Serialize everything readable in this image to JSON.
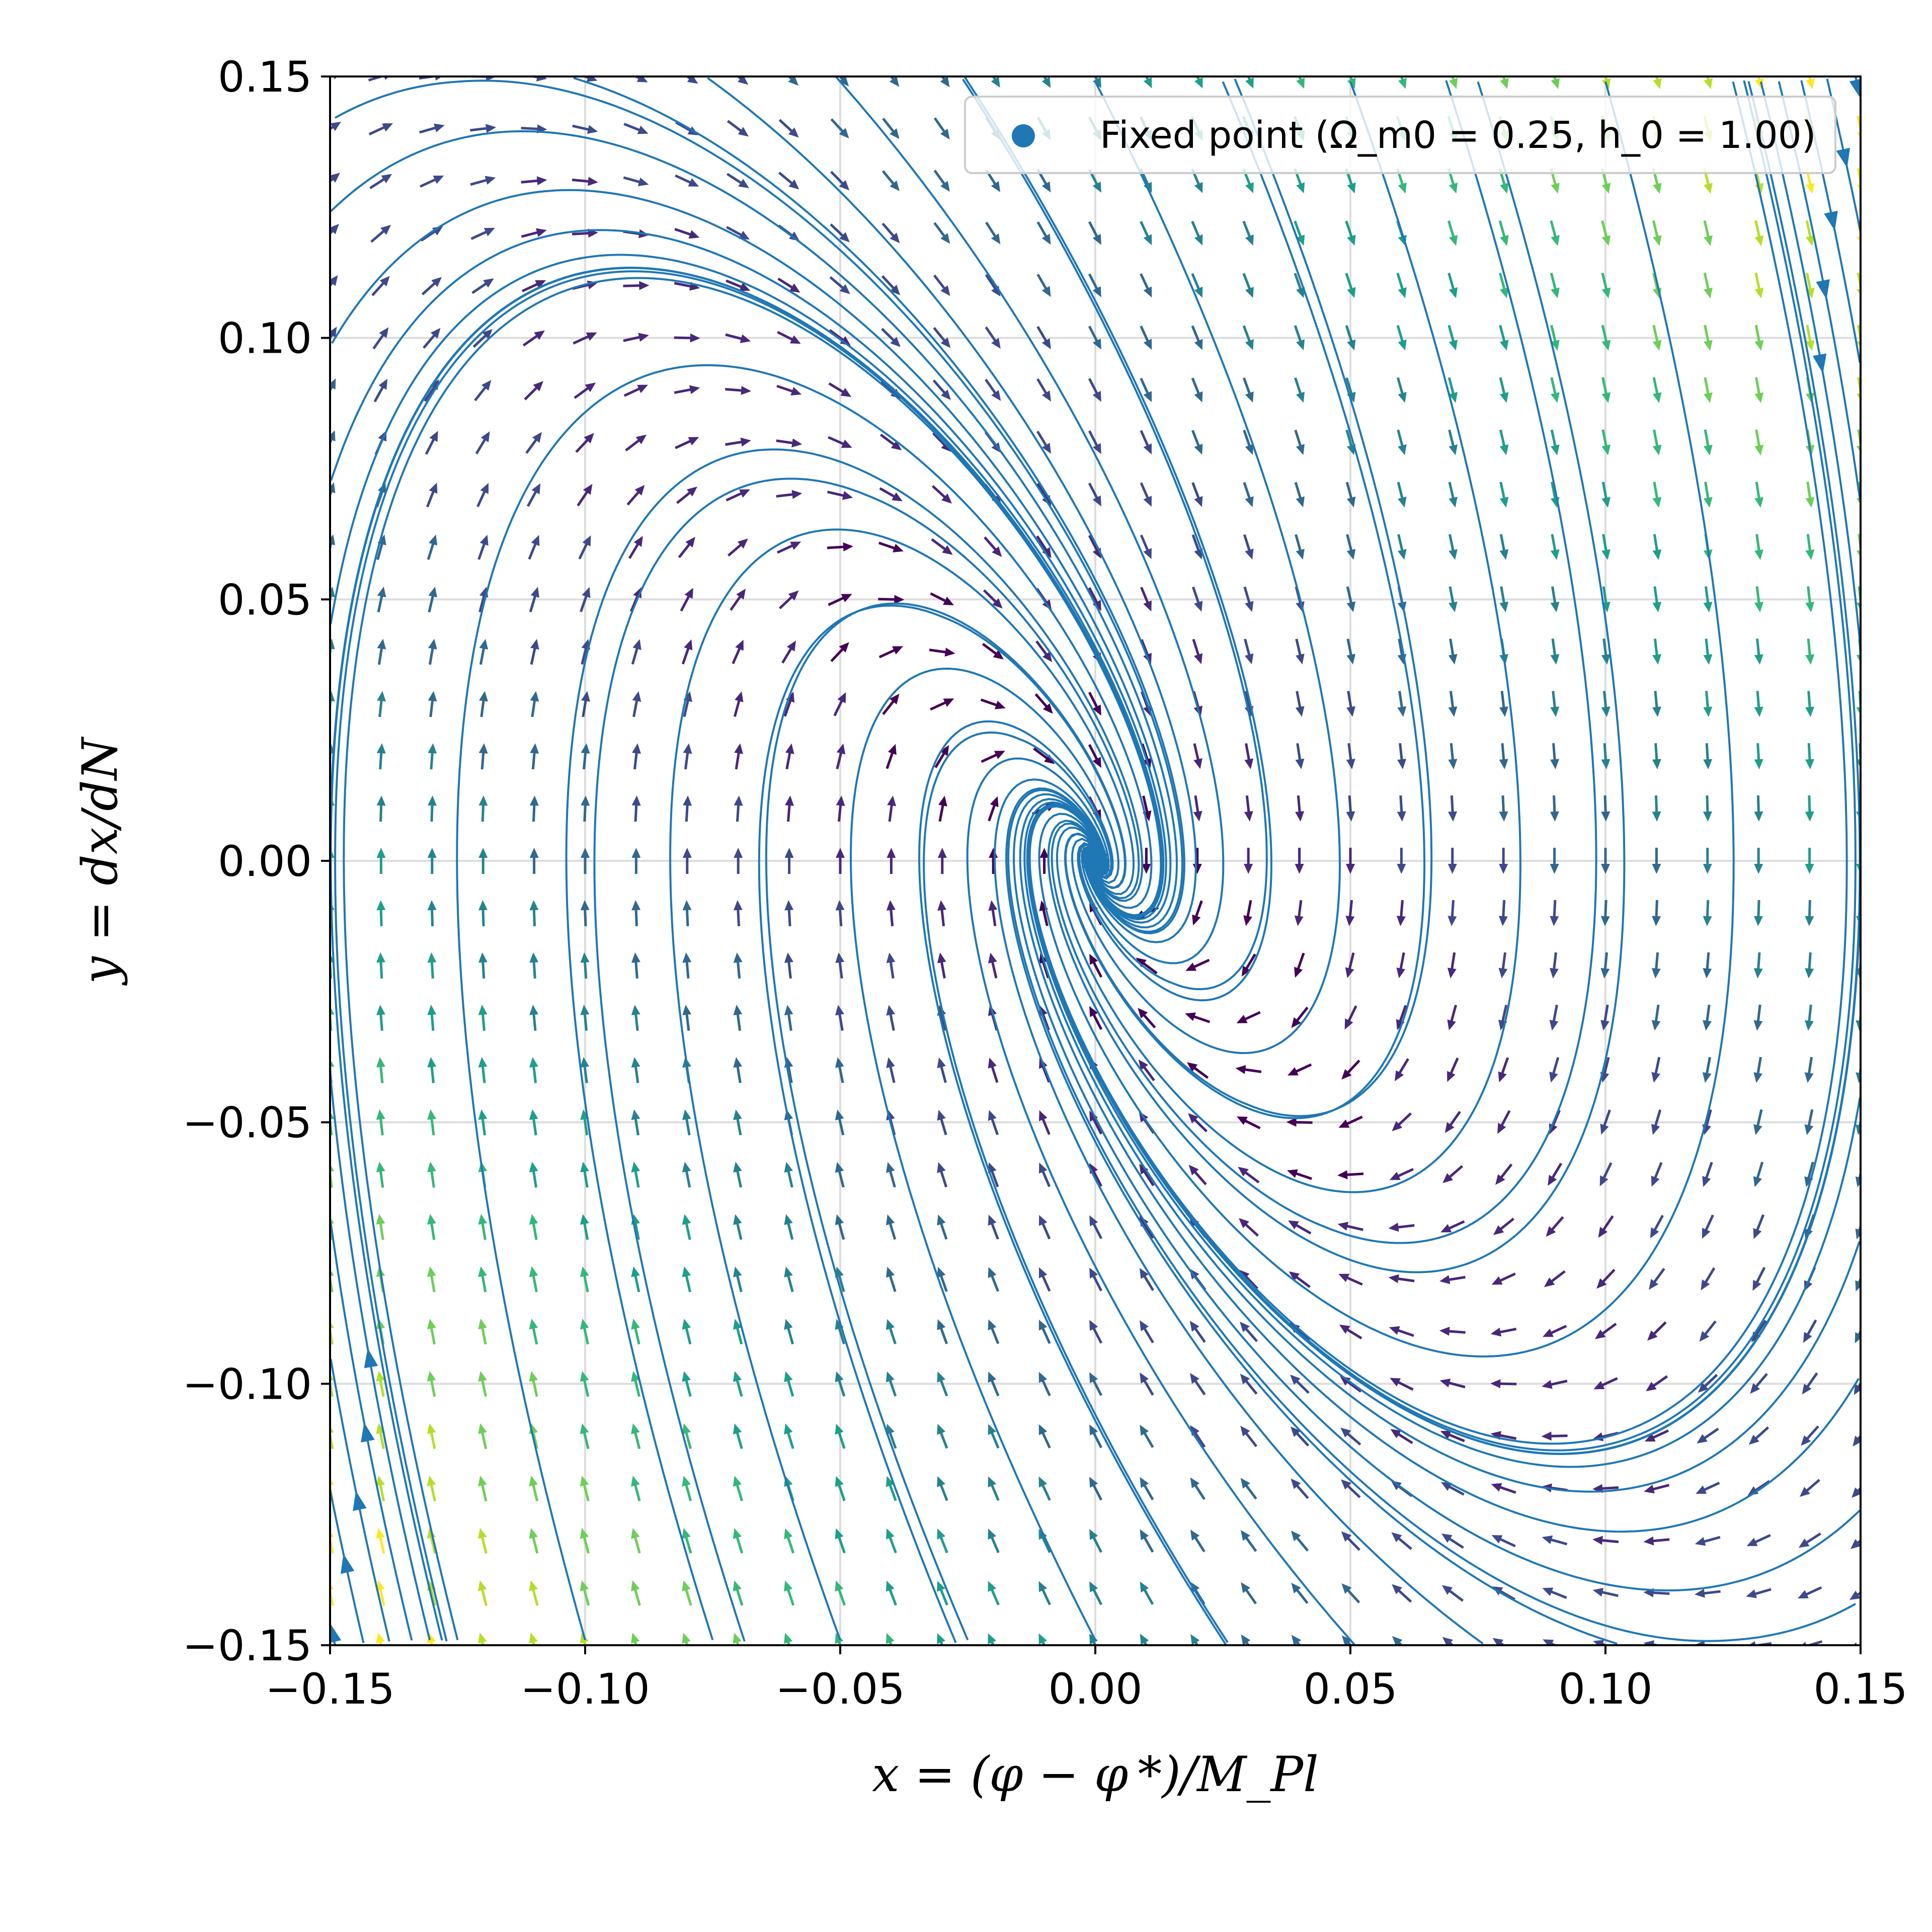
{
  "chart_data": {
    "type": "streamplot",
    "title": "",
    "xlabel": "x = (φ − φ *)/M_Pl",
    "ylabel": "y = dx/dN",
    "xlim": [
      -0.15,
      0.15
    ],
    "ylim": [
      -0.15,
      0.15
    ],
    "xticks": [
      -0.15,
      -0.1,
      -0.05,
      0.0,
      0.05,
      0.1,
      0.15
    ],
    "yticks": [
      -0.15,
      -0.1,
      -0.05,
      0.0,
      0.05,
      0.1,
      0.15
    ],
    "xtick_labels": [
      "−0.15",
      "−0.10",
      "−0.05",
      "0.00",
      "0.05",
      "0.10",
      "0.15"
    ],
    "ytick_labels": [
      "−0.15",
      "−0.10",
      "−0.05",
      "0.00",
      "0.05",
      "0.10",
      "0.15"
    ],
    "grid": true,
    "legend_position": "top-right",
    "legend": [
      {
        "label": "Fixed point (Ω_m0 = 0.25, h_0 = 1.00)",
        "marker": "circle",
        "color": "#1f77b4"
      }
    ],
    "fixed_point": {
      "x": 0.0,
      "y": 0.0,
      "color": "#1f77b4"
    },
    "vector_field": {
      "dx_dN": "y",
      "dy_dN": "-1.9*y - 2.35*x",
      "quiver_grid_step": 0.01,
      "colormap": "viridis",
      "color_by": "magnitude"
    },
    "stream_color": "#1f77b4"
  }
}
